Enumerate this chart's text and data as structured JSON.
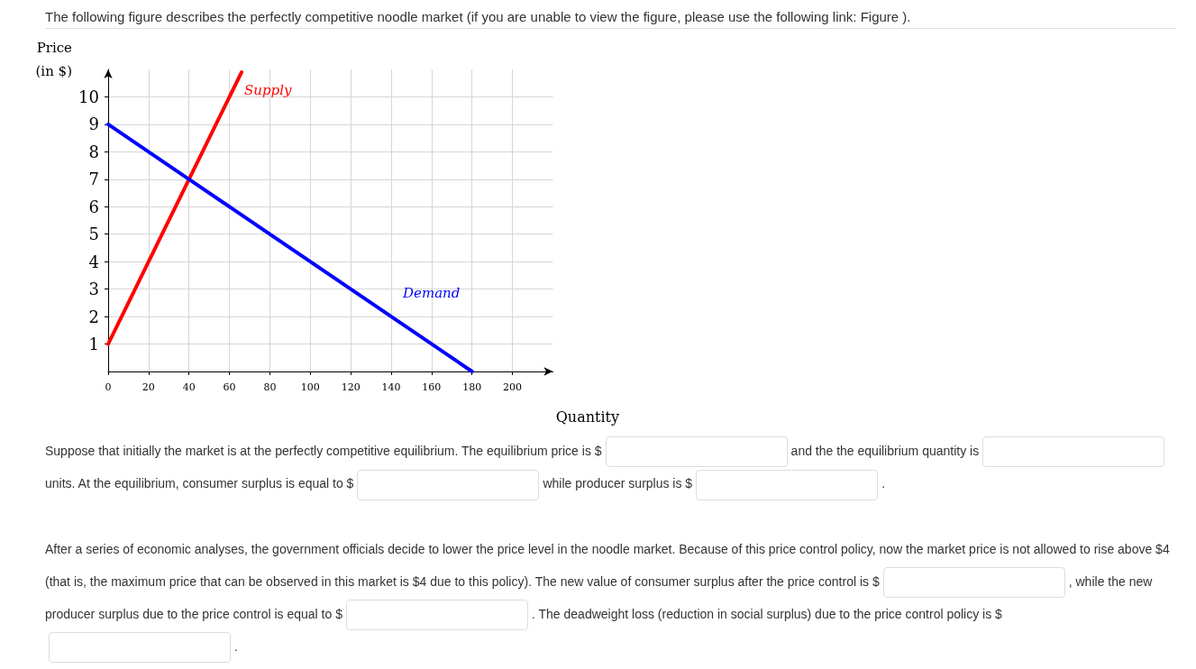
{
  "chart_data": {
    "type": "line",
    "title": "The following figure describes the perfectly competitive noodle market (if you are unable to view the figure, please use the following link: Figure ).",
    "xlabel": "Quantity",
    "ylabel": "Price (in $)",
    "xlim": [
      0,
      220
    ],
    "xticks": [
      0,
      20,
      40,
      60,
      80,
      100,
      120,
      140,
      160,
      180,
      200
    ],
    "ylim": [
      0,
      11
    ],
    "yticks": [
      1,
      2,
      3,
      4,
      5,
      6,
      7,
      8,
      9,
      10
    ],
    "grid": true,
    "legend": false,
    "marker": "none",
    "line_style": "solid",
    "series": [
      {
        "name": "Supply",
        "color": "#ff0000",
        "x": [
          0,
          40,
          66
        ],
        "values": [
          1,
          7,
          10.9
        ]
      },
      {
        "name": "Demand",
        "color": "#0000ff",
        "x": [
          0,
          40,
          180
        ],
        "values": [
          9,
          7,
          0
        ]
      }
    ],
    "annotations": [
      "Suppose that initially the market is at the perfectly competitive equilibrium. The equilibrium price is $",
      "and the the equilibrium quantity is",
      "units. At the equilibrium, consumer surplus is equal to $",
      "while producer surplus is $",
      ".\n\nAfter a series of economic analyses, the government officials decide to lower the price level in the noodle market. Because of this price control policy, now the market price is not allowed to rise above $4 (that is, the maximum price that can be observed in this market is $4 due to this policy). The new value of consumer surplus after the price control is $",
      ", while the new producer surplus due to the price control is equal to $",
      ". The deadweight loss (reduction in social surplus) due to the price control policy is $",
      "."
    ]
  }
}
